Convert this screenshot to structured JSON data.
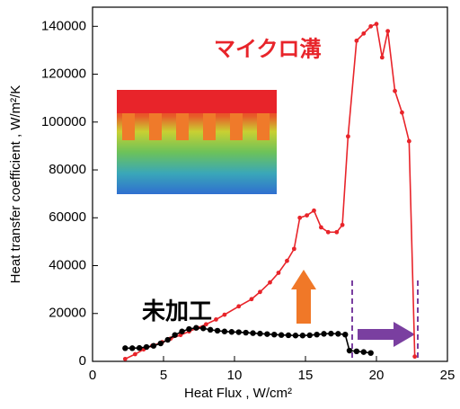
{
  "chart_data": {
    "type": "line",
    "xlabel": "Heat Flux , W/cm²",
    "ylabel": "Heat transfer coefficient , W/m²/K",
    "xlim": [
      0,
      25
    ],
    "xticks": [
      0,
      5,
      10,
      15,
      20,
      25
    ],
    "ylim": [
      0,
      148000
    ],
    "yticks": [
      0,
      20000,
      40000,
      60000,
      80000,
      100000,
      120000,
      140000
    ],
    "series": [
      {
        "name": "マイクロ溝",
        "color": "#e8242a",
        "x": [
          2.3,
          3.0,
          3.6,
          4.2,
          4.9,
          5.5,
          6.2,
          6.8,
          7.4,
          8.0,
          8.7,
          9.3,
          10.3,
          11.2,
          11.8,
          12.5,
          13.1,
          13.7,
          14.2,
          14.6,
          15.1,
          15.6,
          16.1,
          16.6,
          17.2,
          17.6,
          18.0,
          18.6,
          19.1,
          19.6,
          20.0,
          20.4,
          20.8,
          21.3,
          21.8,
          22.3,
          22.7
        ],
        "values": [
          1000,
          3000,
          5000,
          6500,
          8000,
          9500,
          11000,
          12500,
          14000,
          15500,
          17500,
          19500,
          23000,
          26000,
          29000,
          33000,
          37000,
          42000,
          47000,
          60000,
          61000,
          63000,
          56000,
          54000,
          54000,
          57000,
          94000,
          134000,
          137000,
          140000,
          141000,
          127000,
          138000,
          113000,
          104000,
          92000,
          2000
        ]
      },
      {
        "name": "未加工",
        "color": "#000000",
        "x": [
          2.3,
          2.8,
          3.3,
          3.8,
          4.3,
          4.8,
          5.3,
          5.8,
          6.3,
          6.8,
          7.3,
          7.8,
          8.3,
          8.8,
          9.3,
          9.8,
          10.3,
          10.8,
          11.3,
          11.8,
          12.3,
          12.8,
          13.3,
          13.8,
          14.3,
          14.8,
          15.3,
          15.8,
          16.3,
          16.8,
          17.3,
          17.8,
          18.1,
          18.6,
          19.1,
          19.6
        ],
        "values": [
          5500,
          5500,
          5600,
          6000,
          6500,
          7500,
          9000,
          11000,
          12500,
          13500,
          14000,
          13800,
          13200,
          12800,
          12500,
          12300,
          12200,
          12000,
          11800,
          11600,
          11400,
          11200,
          11000,
          10900,
          10800,
          10800,
          10900,
          11200,
          11500,
          11600,
          11500,
          11200,
          4500,
          4200,
          3900,
          3500
        ]
      }
    ]
  }
}
